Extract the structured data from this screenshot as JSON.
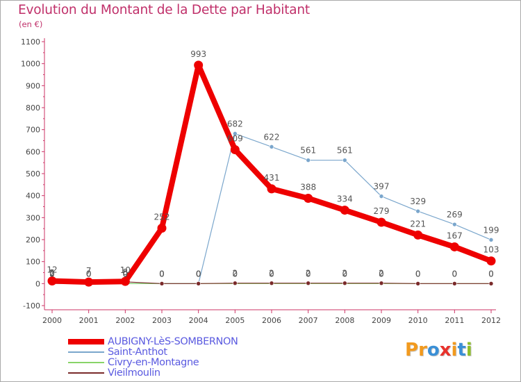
{
  "title": "Evolution du Montant de la Dette par Habitant",
  "unit": "(en €)",
  "logo": {
    "letters": [
      "P",
      "r",
      "o",
      "x",
      "i",
      "t",
      "i"
    ],
    "colors": [
      "#f29a1e",
      "#f29a1e",
      "#3a8fd6",
      "#e8322c",
      "#f29a1e",
      "#3a8fd6",
      "#8fbf2a"
    ]
  },
  "chart_data": {
    "type": "line",
    "title": "Evolution du Montant de la Dette par Habitant",
    "ylabel": "(en €)",
    "xlabel": "",
    "ylim": [
      -100,
      1100
    ],
    "yticks": [
      -100,
      0,
      100,
      200,
      300,
      400,
      500,
      600,
      700,
      800,
      900,
      1000,
      1100
    ],
    "categories": [
      "2000",
      "2001",
      "2002",
      "2003",
      "2004",
      "2005",
      "2006",
      "2007",
      "2008",
      "2009",
      "2010",
      "2011",
      "2012"
    ],
    "grid": false,
    "legend_position": "bottom-left",
    "series": [
      {
        "name": "AUBIGNY-LèS-SOMBERNON",
        "color": "#ee0000",
        "emphasis": "thick",
        "values": [
          12,
          7,
          10,
          252,
          993,
          609,
          431,
          388,
          334,
          279,
          221,
          167,
          103
        ],
        "labels": [
          "12",
          "7",
          "10",
          "252",
          "993",
          "609",
          "431",
          "388",
          "334",
          "279",
          "221",
          "167",
          "103"
        ]
      },
      {
        "name": "Saint-Anthot",
        "color": "#7aa6cc",
        "emphasis": "normal",
        "values": [
          0,
          0,
          0,
          0,
          0,
          682,
          622,
          561,
          561,
          397,
          329,
          269,
          199
        ],
        "labels": [
          "0",
          "0",
          "0",
          "0",
          "0",
          "682",
          "622",
          "561",
          "561",
          "397",
          "329",
          "269",
          "199"
        ]
      },
      {
        "name": "Civry-en-Montagne",
        "color": "#88d468",
        "emphasis": "normal",
        "values": [
          5,
          0,
          0,
          0,
          0,
          0,
          0,
          0,
          0,
          0,
          0,
          0,
          0
        ],
        "labels": [
          "5",
          "0",
          "0",
          "0",
          "0",
          "0",
          "0",
          "0",
          "0",
          "0",
          "0",
          "0",
          "0"
        ]
      },
      {
        "name": "Vieilmoulin",
        "color": "#7a2a2a",
        "emphasis": "normal",
        "values": [
          2,
          0,
          8,
          0,
          0,
          2,
          2,
          2,
          2,
          2,
          0,
          0,
          0
        ],
        "labels": [
          "2",
          "0",
          "8",
          "0",
          "0",
          "2",
          "2",
          "2",
          "2",
          "2",
          "0",
          "0",
          "0"
        ]
      }
    ]
  }
}
